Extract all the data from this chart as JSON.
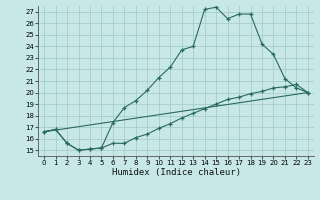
{
  "xlabel": "Humidex (Indice chaleur)",
  "bg_color": "#c8e8e8",
  "grid_color": "#a0c8c8",
  "line_color": "#2a6a5a",
  "xlim": [
    -0.5,
    23.5
  ],
  "ylim": [
    14.5,
    27.5
  ],
  "xticks": [
    0,
    1,
    2,
    3,
    4,
    5,
    6,
    7,
    8,
    9,
    10,
    11,
    12,
    13,
    14,
    15,
    16,
    17,
    18,
    19,
    20,
    21,
    22,
    23
  ],
  "yticks": [
    15,
    16,
    17,
    18,
    19,
    20,
    21,
    22,
    23,
    24,
    25,
    26,
    27
  ],
  "line1_x": [
    0,
    1,
    2,
    3,
    4,
    5,
    6,
    7,
    8,
    9,
    10,
    11,
    12,
    13,
    14,
    15,
    16,
    17,
    18,
    19,
    20,
    21,
    22,
    23
  ],
  "line1_y": [
    16.6,
    16.8,
    15.6,
    15.0,
    15.1,
    15.2,
    17.4,
    18.7,
    19.3,
    20.2,
    21.3,
    22.2,
    23.7,
    24.0,
    27.2,
    27.4,
    26.4,
    26.8,
    26.8,
    24.2,
    23.3,
    21.2,
    20.4,
    20.0
  ],
  "line2_x": [
    0,
    1,
    2,
    3,
    4,
    5,
    6,
    7,
    8,
    9,
    10,
    11,
    12,
    13,
    14,
    15,
    16,
    17,
    18,
    19,
    20,
    21,
    22,
    23
  ],
  "line2_y": [
    16.6,
    16.8,
    15.6,
    15.0,
    15.1,
    15.2,
    15.6,
    15.6,
    16.1,
    16.4,
    16.9,
    17.3,
    17.8,
    18.2,
    18.6,
    19.0,
    19.4,
    19.6,
    19.9,
    20.1,
    20.4,
    20.5,
    20.7,
    20.0
  ],
  "line3_x": [
    0,
    23
  ],
  "line3_y": [
    16.6,
    20.0
  ]
}
